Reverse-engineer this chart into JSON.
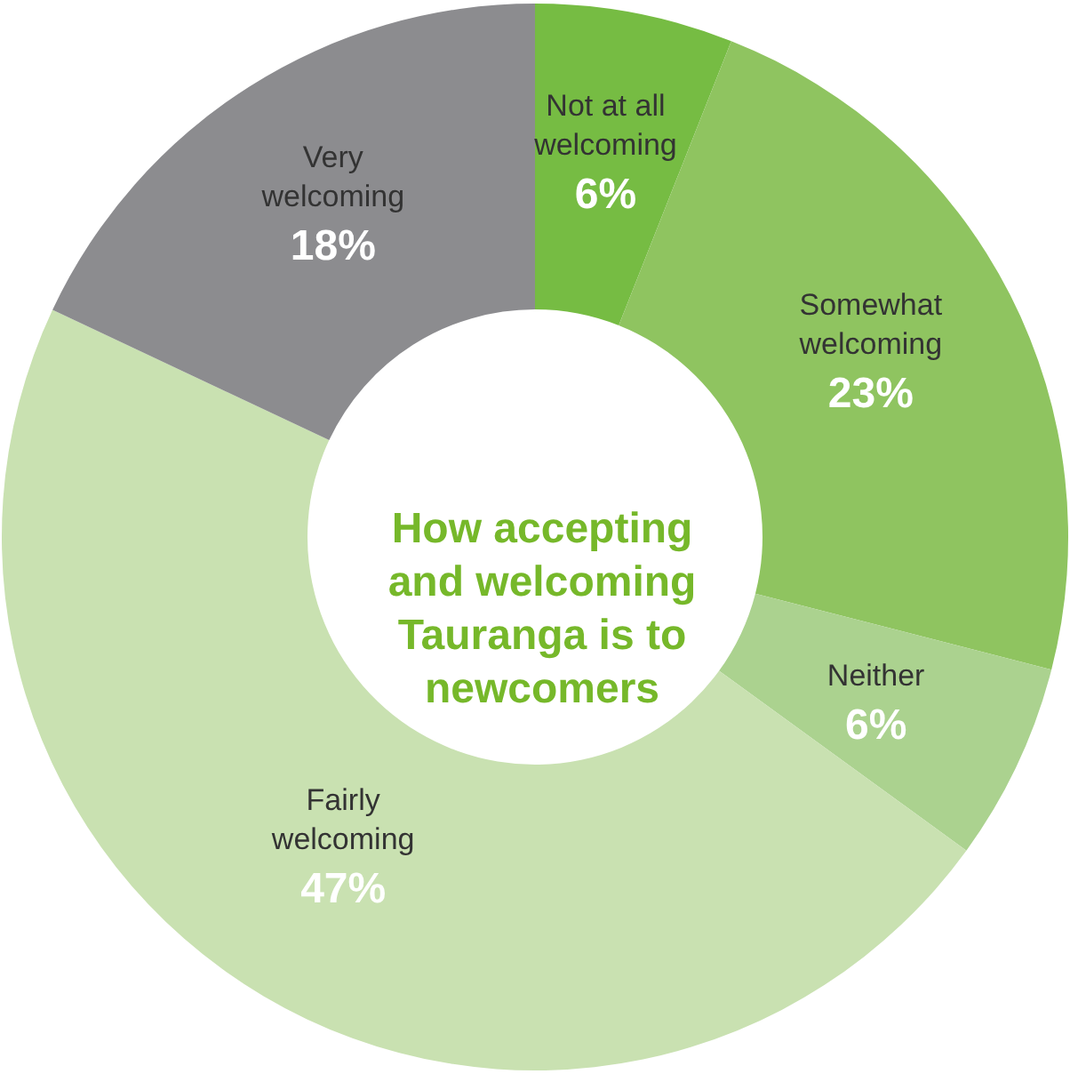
{
  "chart_data": {
    "type": "donut",
    "title": "How accepting and welcoming Tauranga is to newcomers",
    "categories": [
      "Not at all welcoming",
      "Somewhat welcoming",
      "Neither",
      "Fairly welcoming",
      "Very welcoming"
    ],
    "values": [
      6,
      23,
      6,
      47,
      18
    ],
    "value_labels": [
      "6%",
      "23%",
      "6%",
      "47%",
      "18%"
    ],
    "colors": [
      "#76bc43",
      "#8fc460",
      "#abd28f",
      "#c9e1b1",
      "#8c8c8f"
    ]
  }
}
